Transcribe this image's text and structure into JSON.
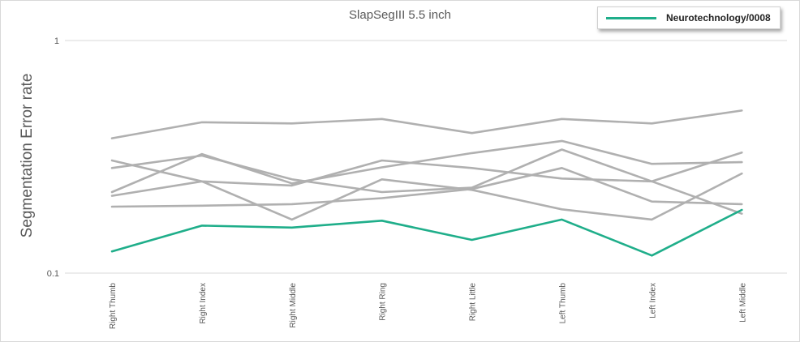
{
  "chart_data": {
    "type": "line",
    "title": "SlapSegIII 5.5 inch",
    "xlabel": "",
    "ylabel": "Segmentation Error rate",
    "y_scale": "log",
    "ylim": [
      0.1,
      1
    ],
    "y_ticks": [
      "1",
      "0.1"
    ],
    "categories": [
      "Right Thumb",
      "Right Index",
      "Right Middle",
      "Right Ring",
      "Right Little",
      "Left Thumb",
      "Left Index",
      "Left Middle"
    ],
    "legend_position": "top-right",
    "series": [
      {
        "name": "Neurotechnology/0008",
        "color": "#1fae8a",
        "highlight": true,
        "values": [
          0.124,
          0.16,
          0.157,
          0.168,
          0.139,
          0.17,
          0.119,
          0.187
        ]
      },
      {
        "color": "#b0b0b0",
        "values": [
          0.38,
          0.445,
          0.44,
          0.46,
          0.4,
          0.46,
          0.44,
          0.5
        ]
      },
      {
        "color": "#b0b0b0",
        "values": [
          0.305,
          0.248,
          0.238,
          0.305,
          0.283,
          0.255,
          0.248,
          0.33
        ]
      },
      {
        "color": "#b0b0b0",
        "values": [
          0.283,
          0.32,
          0.253,
          0.223,
          0.233,
          0.34,
          0.248,
          0.18
        ]
      },
      {
        "color": "#b0b0b0",
        "values": [
          0.223,
          0.325,
          0.243,
          0.285,
          0.328,
          0.37,
          0.295,
          0.3
        ]
      },
      {
        "color": "#b0b0b0",
        "values": [
          0.215,
          0.248,
          0.17,
          0.253,
          0.228,
          0.188,
          0.17,
          0.268
        ]
      },
      {
        "color": "#b0b0b0",
        "values": [
          0.193,
          0.195,
          0.198,
          0.21,
          0.23,
          0.283,
          0.203,
          0.198
        ]
      }
    ]
  }
}
